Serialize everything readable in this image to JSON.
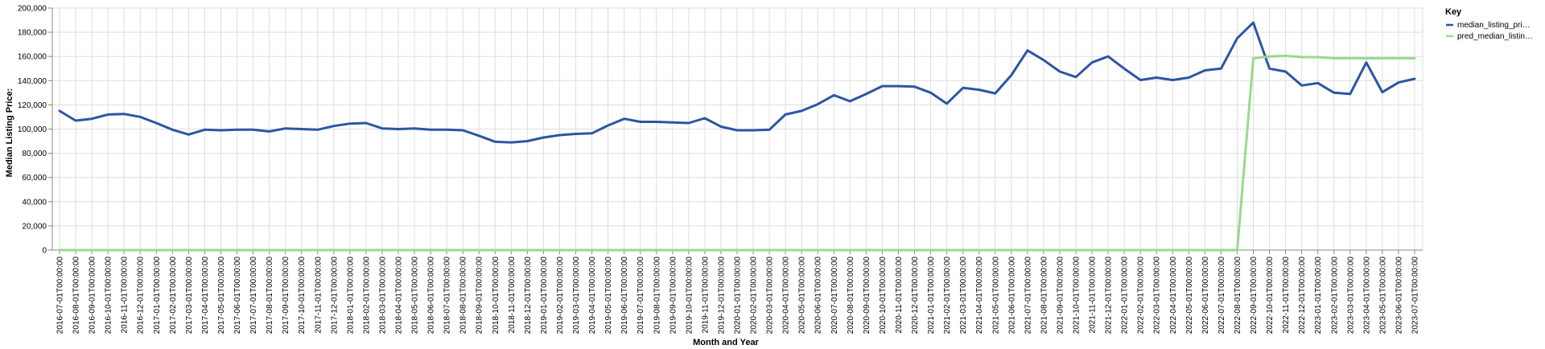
{
  "chart_data": {
    "type": "line",
    "xlabel": "Month and Year",
    "ylabel": "Median Listing Price:",
    "ylim": [
      0,
      200000
    ],
    "y_ticks": [
      "0",
      "20,000",
      "40,000",
      "60,000",
      "80,000",
      "100,000",
      "120,000",
      "140,000",
      "160,000",
      "180,000",
      "200,000"
    ],
    "grid": true,
    "legend": {
      "title": "Key",
      "placement": "top-right",
      "entries": [
        "median_listing_pri…",
        "pred_median_listin…"
      ]
    },
    "categories": [
      "2016-07-01T00:00:00",
      "2016-08-01T00:00:00",
      "2016-09-01T00:00:00",
      "2016-10-01T00:00:00",
      "2016-11-01T00:00:00",
      "2016-12-01T00:00:00",
      "2017-01-01T00:00:00",
      "2017-02-01T00:00:00",
      "2017-03-01T00:00:00",
      "2017-04-01T00:00:00",
      "2017-05-01T00:00:00",
      "2017-06-01T00:00:00",
      "2017-07-01T00:00:00",
      "2017-08-01T00:00:00",
      "2017-09-01T00:00:00",
      "2017-10-01T00:00:00",
      "2017-11-01T00:00:00",
      "2017-12-01T00:00:00",
      "2018-01-01T00:00:00",
      "2018-02-01T00:00:00",
      "2018-03-01T00:00:00",
      "2018-04-01T00:00:00",
      "2018-05-01T00:00:00",
      "2018-06-01T00:00:00",
      "2018-07-01T00:00:00",
      "2018-08-01T00:00:00",
      "2018-09-01T00:00:00",
      "2018-10-01T00:00:00",
      "2018-11-01T00:00:00",
      "2018-12-01T00:00:00",
      "2019-01-01T00:00:00",
      "2019-02-01T00:00:00",
      "2019-03-01T00:00:00",
      "2019-04-01T00:00:00",
      "2019-05-01T00:00:00",
      "2019-06-01T00:00:00",
      "2019-07-01T00:00:00",
      "2019-08-01T00:00:00",
      "2019-09-01T00:00:00",
      "2019-10-01T00:00:00",
      "2019-11-01T00:00:00",
      "2019-12-01T00:00:00",
      "2020-01-01T00:00:00",
      "2020-02-01T00:00:00",
      "2020-03-01T00:00:00",
      "2020-04-01T00:00:00",
      "2020-05-01T00:00:00",
      "2020-06-01T00:00:00",
      "2020-07-01T00:00:00",
      "2020-08-01T00:00:00",
      "2020-09-01T00:00:00",
      "2020-10-01T00:00:00",
      "2020-11-01T00:00:00",
      "2020-12-01T00:00:00",
      "2021-01-01T00:00:00",
      "2021-02-01T00:00:00",
      "2021-03-01T00:00:00",
      "2021-04-01T00:00:00",
      "2021-05-01T00:00:00",
      "2021-06-01T00:00:00",
      "2021-07-01T00:00:00",
      "2021-08-01T00:00:00",
      "2021-09-01T00:00:00",
      "2021-10-01T00:00:00",
      "2021-11-01T00:00:00",
      "2021-12-01T00:00:00",
      "2022-01-01T00:00:00",
      "2022-02-01T00:00:00",
      "2022-03-01T00:00:00",
      "2022-04-01T00:00:00",
      "2022-05-01T00:00:00",
      "2022-06-01T00:00:00",
      "2022-07-01T00:00:00",
      "2022-08-01T00:00:00",
      "2022-09-01T00:00:00",
      "2022-10-01T00:00:00",
      "2022-11-01T00:00:00",
      "2022-12-01T00:00:00",
      "2023-01-01T00:00:00",
      "2023-02-01T00:00:00",
      "2023-03-01T00:00:00",
      "2023-04-01T00:00:00",
      "2023-05-01T00:00:00",
      "2023-06-01T00:00:00",
      "2023-07-01T00:00:00"
    ],
    "series": [
      {
        "name": "median_listing_pri…",
        "color": "#2b56a4",
        "values": [
          115000,
          107000,
          108500,
          112000,
          112500,
          110000,
          105000,
          99500,
          95500,
          99500,
          99000,
          99500,
          99500,
          98000,
          100500,
          100000,
          99500,
          102500,
          104500,
          105000,
          100500,
          100000,
          100500,
          99500,
          99500,
          99000,
          94500,
          89500,
          89000,
          90000,
          93000,
          95000,
          96000,
          96500,
          103000,
          108500,
          106000,
          106000,
          105500,
          105000,
          109000,
          102000,
          99000,
          99000,
          99500,
          112000,
          115000,
          120500,
          128000,
          123000,
          129000,
          135500,
          135500,
          135000,
          130000,
          121000,
          134000,
          132500,
          129500,
          144500,
          165000,
          157000,
          147500,
          143000,
          155000,
          160000,
          150000,
          140500,
          142500,
          140500,
          142500,
          148500,
          150000,
          175000,
          188000,
          150000,
          147500,
          136000,
          138000,
          130000,
          129000,
          155000,
          130500,
          138500,
          141500
        ]
      },
      {
        "name": "pred_median_listin…",
        "color": "#9ad88e",
        "values": [
          0,
          0,
          0,
          0,
          0,
          0,
          0,
          0,
          0,
          0,
          0,
          0,
          0,
          0,
          0,
          0,
          0,
          0,
          0,
          0,
          0,
          0,
          0,
          0,
          0,
          0,
          0,
          0,
          0,
          0,
          0,
          0,
          0,
          0,
          0,
          0,
          0,
          0,
          0,
          0,
          0,
          0,
          0,
          0,
          0,
          0,
          0,
          0,
          0,
          0,
          0,
          0,
          0,
          0,
          0,
          0,
          0,
          0,
          0,
          0,
          0,
          0,
          0,
          0,
          0,
          0,
          0,
          0,
          0,
          0,
          0,
          0,
          0,
          0,
          158500,
          160000,
          160500,
          159500,
          159500,
          158500,
          158500,
          158500,
          158500,
          158500,
          158500
        ]
      }
    ]
  }
}
